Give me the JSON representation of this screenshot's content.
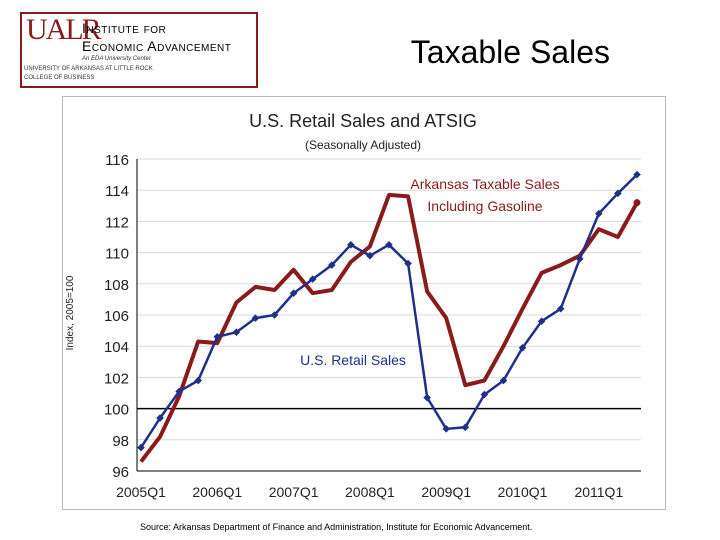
{
  "header": {
    "logo": {
      "mark": "UALR",
      "name_line1": "Institute for",
      "name_line2": "Economic Advancement",
      "tagline": "An EDA University Center",
      "line1": "UNIVERSITY OF ARKANSAS AT LITTLE ROCK",
      "line2": "COLLEGE OF BUSINESS"
    },
    "page_title": "Taxable Sales"
  },
  "footer": {
    "source": "Source: Arkansas Department of Finance and Administration, Institute for Economic Advancement."
  },
  "colors": {
    "retail": "#1f2f8a",
    "arkansas": "#8b1a1a",
    "axis": "#000000",
    "grid": "#d9d9d9"
  },
  "chart_data": {
    "type": "line",
    "title": "U.S. Retail Sales and ATSIG",
    "subtitle": "(Seasonally Adjusted)",
    "ylabel": "Index, 2005=100",
    "xlabel": "",
    "ylim": [
      96,
      116
    ],
    "yticks": [
      96,
      98,
      100,
      102,
      104,
      106,
      108,
      110,
      112,
      114,
      116
    ],
    "grid": true,
    "x_tick_labels": [
      "2005Q1",
      "2006Q1",
      "2007Q1",
      "2008Q1",
      "2009Q1",
      "2010Q1",
      "2011Q1"
    ],
    "annotations": [
      {
        "lines": [
          "Arkansas Taxable Sales",
          "Including Gasoline"
        ],
        "series": "arkansas"
      },
      {
        "lines": [
          "U.S. Retail Sales"
        ],
        "series": "retail"
      }
    ],
    "series": [
      {
        "key": "retail",
        "values": [
          97.5,
          99.4,
          101.1,
          101.8,
          104.6,
          104.9,
          105.8,
          106.0,
          107.4,
          108.3,
          109.2,
          110.5,
          109.8,
          110.5,
          109.3,
          100.7,
          98.7,
          98.8,
          100.9,
          101.8,
          103.9,
          105.6,
          106.4,
          109.6,
          112.5,
          113.8,
          115.0
        ]
      },
      {
        "key": "arkansas",
        "values": [
          96.6,
          98.2,
          100.8,
          104.3,
          104.2,
          106.8,
          107.8,
          107.6,
          108.9,
          107.4,
          107.6,
          109.4,
          110.4,
          113.7,
          113.6,
          107.5,
          105.8,
          101.5,
          101.8,
          104.0,
          106.4,
          108.7,
          109.2,
          109.8,
          111.5,
          111.0,
          113.2
        ]
      }
    ]
  }
}
